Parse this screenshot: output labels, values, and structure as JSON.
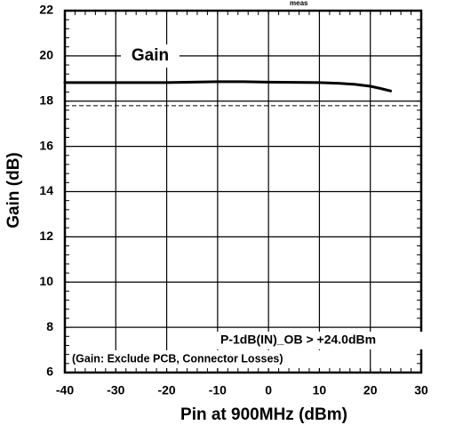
{
  "chart_data": {
    "type": "line",
    "title": "",
    "xlabel": "Pin at 900MHz (dBm)",
    "ylabel": "Gain (dB)",
    "xlim": [
      -40,
      30
    ],
    "ylim": [
      6,
      22
    ],
    "x_ticks": [
      -40,
      -30,
      -20,
      -10,
      0,
      10,
      20,
      30
    ],
    "y_ticks": [
      6,
      8,
      10,
      12,
      14,
      16,
      18,
      20,
      22
    ],
    "x_tick_labels": [
      "-40",
      "-30",
      "-20",
      "-10",
      "0",
      "10",
      "20",
      "30"
    ],
    "y_tick_labels": [
      "6",
      "8",
      "10",
      "12",
      "14",
      "16",
      "18",
      "20",
      "22"
    ],
    "grid": true,
    "series": [
      {
        "name": "Gain",
        "x": [
          -40,
          -30,
          -20,
          -15,
          -10,
          -5,
          0,
          5,
          10,
          14,
          17,
          20,
          22,
          24
        ],
        "y": [
          18.82,
          18.82,
          18.82,
          18.84,
          18.86,
          18.86,
          18.84,
          18.83,
          18.82,
          18.79,
          18.74,
          18.66,
          18.56,
          18.45
        ]
      }
    ],
    "reference_line": {
      "y": 17.8,
      "style": "dashed"
    },
    "annotations": {
      "series_label": "Gain",
      "p1db": "P-1dB(IN)_OB > +24.0dBm",
      "note": "(Gain: Exclude PCB, Connector Losses)",
      "top_partial": "meas"
    }
  }
}
